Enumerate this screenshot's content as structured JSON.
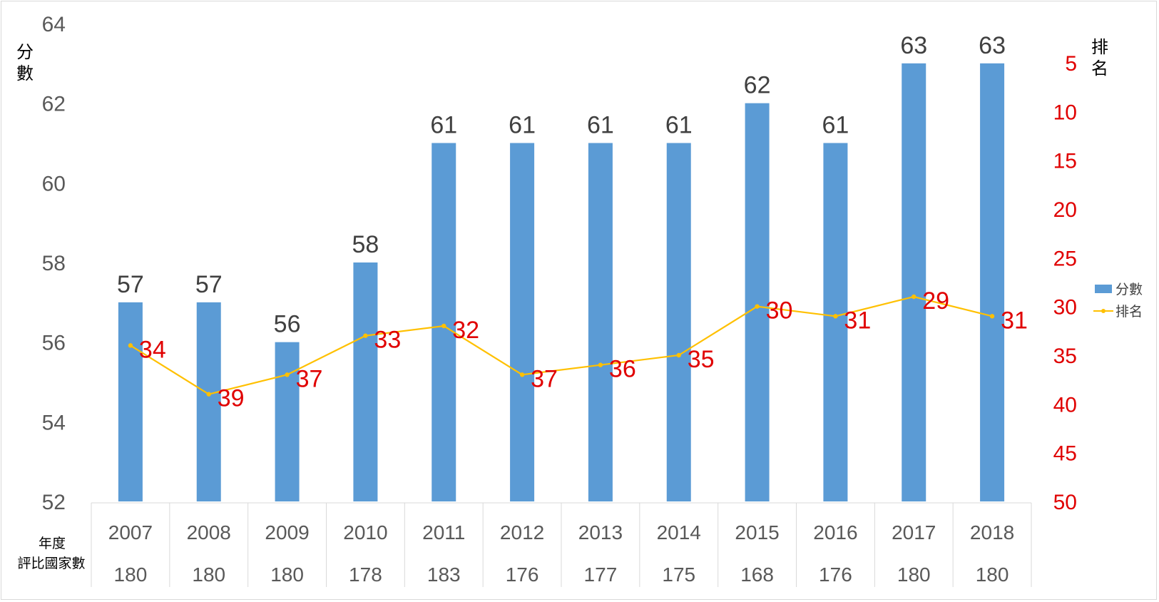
{
  "chart_data": {
    "type": "bar",
    "categories": [
      "2007",
      "2008",
      "2009",
      "2010",
      "2011",
      "2012",
      "2013",
      "2014",
      "2015",
      "2016",
      "2017",
      "2018"
    ],
    "row_labels": [
      "年度",
      "評比國家數"
    ],
    "countries_evaluated": [
      "180",
      "180",
      "180",
      "178",
      "183",
      "176",
      "177",
      "175",
      "168",
      "176",
      "180",
      "180"
    ],
    "series": [
      {
        "name": "分數",
        "type": "bar",
        "axis": "left",
        "color": "#5b9bd5",
        "values": [
          57,
          57,
          56,
          58,
          61,
          61,
          61,
          61,
          62,
          61,
          63,
          63
        ]
      },
      {
        "name": "排名",
        "type": "line",
        "axis": "right",
        "color": "#ffc000",
        "label_color": "#e00000",
        "values": [
          34,
          39,
          37,
          33,
          32,
          37,
          36,
          35,
          30,
          31,
          29,
          31
        ]
      }
    ],
    "left_axis": {
      "label": "分數",
      "ylim": [
        52,
        64
      ],
      "ticks": [
        52,
        54,
        56,
        58,
        60,
        62,
        64
      ],
      "color": "#595959"
    },
    "right_axis": {
      "label": "排名",
      "ylim": [
        50,
        5
      ],
      "reversed": true,
      "ticks": [
        5,
        10,
        15,
        20,
        25,
        30,
        35,
        40,
        45,
        50
      ],
      "color": "#e00000"
    },
    "grid": false,
    "legend_position": "right"
  }
}
